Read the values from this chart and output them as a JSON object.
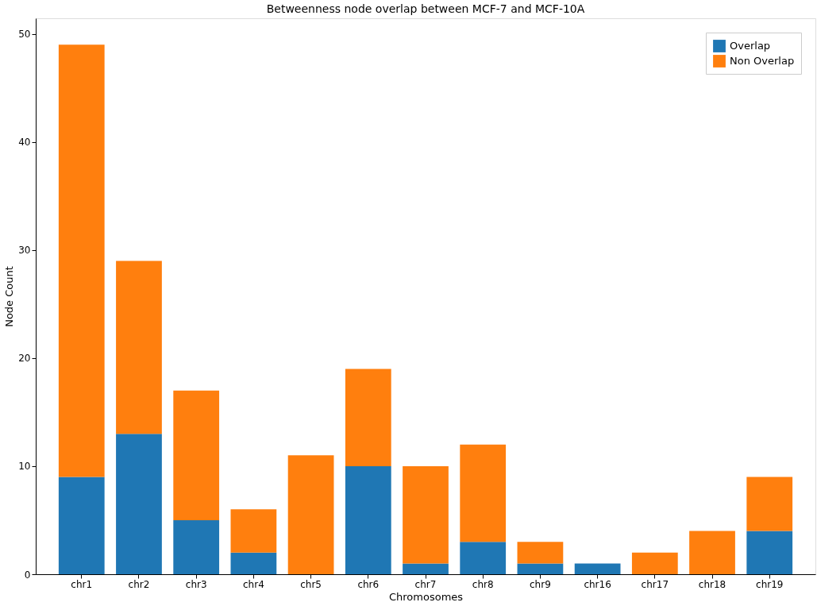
{
  "chart_data": {
    "type": "bar",
    "title": "Betweenness node overlap between MCF-7 and MCF-10A",
    "xlabel": "Chromosomes",
    "ylabel": "Node Count",
    "categories": [
      "chr1",
      "chr2",
      "chr3",
      "chr4",
      "chr5",
      "chr6",
      "chr7",
      "chr8",
      "chr9",
      "chr16",
      "chr17",
      "chr18",
      "chr19"
    ],
    "series": [
      {
        "name": "Overlap",
        "color": "#1f77b4",
        "values": [
          9,
          13,
          5,
          2,
          0,
          10,
          1,
          3,
          1,
          1,
          0,
          0,
          4
        ]
      },
      {
        "name": "Non Overlap",
        "color": "#ff7f0e",
        "values": [
          40,
          16,
          12,
          4,
          11,
          9,
          9,
          9,
          2,
          0,
          2,
          4,
          5
        ]
      }
    ],
    "stacked": true,
    "ylim": [
      0,
      51.45
    ],
    "yticks": [
      0,
      10,
      20,
      30,
      40,
      50
    ],
    "grid": false,
    "legend": "top right"
  }
}
